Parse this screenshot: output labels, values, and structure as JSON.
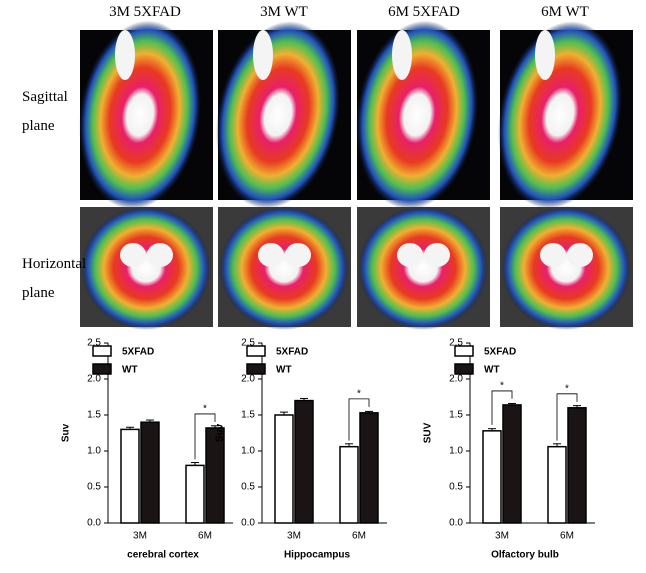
{
  "panels": {
    "columns": [
      "3M 5XFAD",
      "3M WT",
      "6M 5XFAD",
      "6M WT"
    ],
    "rows": [
      "Sagittal plane",
      "Horizontal plane"
    ]
  },
  "chart_data": [
    {
      "type": "bar",
      "ylabel": "Suv",
      "xlabel": "cerebral cortex",
      "categories": [
        "3M",
        "6M"
      ],
      "series": [
        {
          "name": "5XFAD",
          "color": "#ffffff",
          "values": [
            1.3,
            0.8
          ],
          "errors": [
            0.03,
            0.04
          ]
        },
        {
          "name": "WT",
          "color": "#1a1414",
          "values": [
            1.4,
            1.32
          ],
          "errors": [
            0.03,
            0.03
          ]
        }
      ],
      "ylim": [
        0,
        2.5
      ],
      "yticks": [
        {
          "value": 0,
          "label": "0.0"
        },
        {
          "value": 0.5,
          "label": "0.5"
        },
        {
          "value": 1,
          "label": "1.0"
        },
        {
          "value": 1.5,
          "label": "1.5"
        },
        {
          "value": 2,
          "label": "2.0"
        },
        {
          "value": 2.5,
          "label": "2.5"
        }
      ],
      "annotations": [
        {
          "text": "*",
          "category": 1
        }
      ]
    },
    {
      "type": "bar",
      "ylabel": "Suv",
      "xlabel": "Hippocampus",
      "categories": [
        "3M",
        "6M"
      ],
      "series": [
        {
          "name": "5XFAD",
          "color": "#ffffff",
          "values": [
            1.5,
            1.06
          ],
          "errors": [
            0.04,
            0.04
          ]
        },
        {
          "name": "WT",
          "color": "#1a1414",
          "values": [
            1.7,
            1.53
          ],
          "errors": [
            0.03,
            0.02
          ]
        }
      ],
      "ylim": [
        0,
        2.5
      ],
      "yticks": [
        {
          "value": 0,
          "label": "0.0"
        },
        {
          "value": 0.5,
          "label": "0.5"
        },
        {
          "value": 1,
          "label": "1.0"
        },
        {
          "value": 1.5,
          "label": "1.5"
        },
        {
          "value": 2,
          "label": "2.0"
        },
        {
          "value": 2.5,
          "label": "2.5"
        }
      ],
      "annotations": [
        {
          "text": "*",
          "category": 1
        }
      ]
    },
    {
      "type": "bar",
      "ylabel": "SUV",
      "xlabel": "Olfactory bulb",
      "categories": [
        "3M",
        "6M"
      ],
      "series": [
        {
          "name": "5XFAD",
          "color": "#ffffff",
          "values": [
            1.28,
            1.06
          ],
          "errors": [
            0.03,
            0.04
          ]
        },
        {
          "name": "WT",
          "color": "#1a1414",
          "values": [
            1.64,
            1.6
          ],
          "errors": [
            0.02,
            0.03
          ]
        }
      ],
      "ylim": [
        0,
        2.5
      ],
      "yticks": [
        {
          "value": 0,
          "label": "0.0"
        },
        {
          "value": 0.5,
          "label": "0.5"
        },
        {
          "value": 1,
          "label": "1.0"
        },
        {
          "value": 1.5,
          "label": "1.5"
        },
        {
          "value": 2,
          "label": "2.0"
        },
        {
          "value": 2.5,
          "label": "2.5"
        }
      ],
      "annotations": [
        {
          "text": "*",
          "category": 0
        },
        {
          "text": "*",
          "category": 1
        }
      ]
    }
  ]
}
